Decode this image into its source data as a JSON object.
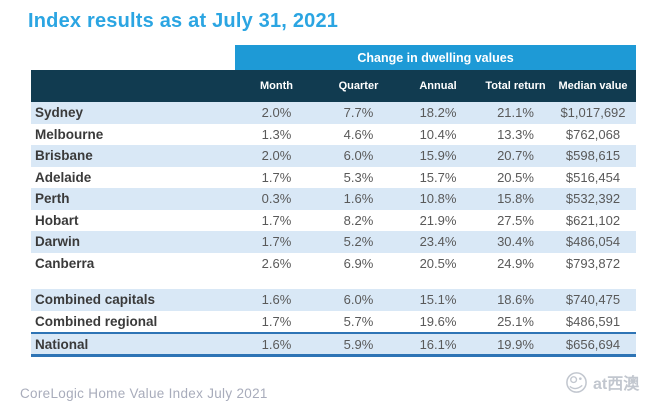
{
  "title": "Index results as at July 31, 2021",
  "chart_data": {
    "type": "table",
    "title": "Index results as at July 31, 2021",
    "banner": "Change in dwelling values",
    "columns": [
      "Month",
      "Quarter",
      "Annual",
      "Total return",
      "Median value"
    ],
    "rows": [
      {
        "label": "Sydney",
        "values": [
          "2.0%",
          "7.7%",
          "18.2%",
          "21.1%",
          "$1,017,692"
        ],
        "group": "city"
      },
      {
        "label": "Melbourne",
        "values": [
          "1.3%",
          "4.6%",
          "10.4%",
          "13.3%",
          "$762,068"
        ],
        "group": "city"
      },
      {
        "label": "Brisbane",
        "values": [
          "2.0%",
          "6.0%",
          "15.9%",
          "20.7%",
          "$598,615"
        ],
        "group": "city"
      },
      {
        "label": "Adelaide",
        "values": [
          "1.7%",
          "5.3%",
          "15.7%",
          "20.5%",
          "$516,454"
        ],
        "group": "city"
      },
      {
        "label": "Perth",
        "values": [
          "0.3%",
          "1.6%",
          "10.8%",
          "15.8%",
          "$532,392"
        ],
        "group": "city"
      },
      {
        "label": "Hobart",
        "values": [
          "1.7%",
          "8.2%",
          "21.9%",
          "27.5%",
          "$621,102"
        ],
        "group": "city"
      },
      {
        "label": "Darwin",
        "values": [
          "1.7%",
          "5.2%",
          "23.4%",
          "30.4%",
          "$486,054"
        ],
        "group": "city"
      },
      {
        "label": "Canberra",
        "values": [
          "2.6%",
          "6.9%",
          "20.5%",
          "24.9%",
          "$793,872"
        ],
        "group": "city"
      },
      {
        "label": "Combined capitals",
        "values": [
          "1.6%",
          "6.0%",
          "15.1%",
          "18.6%",
          "$740,475"
        ],
        "group": "combined",
        "spacer_before": true
      },
      {
        "label": "Combined regional",
        "values": [
          "1.7%",
          "5.7%",
          "19.6%",
          "25.1%",
          "$486,591"
        ],
        "group": "combined"
      },
      {
        "label": "National",
        "values": [
          "1.6%",
          "5.9%",
          "16.1%",
          "19.9%",
          "$656,694"
        ],
        "group": "national"
      }
    ]
  },
  "footer": {
    "source": "CoreLogic Home Value Index July 2021"
  },
  "watermark": {
    "label": "at西澳",
    "icon": "globe-logo-icon"
  },
  "colors": {
    "banner_blue": "#1E9AD6",
    "header_navy": "#113B50",
    "stripe_blue": "#D9E8F6",
    "title_blue": "#2BA5E2",
    "value_gray": "#595959",
    "national_border_blue": "#2E74B5",
    "footer_gray": "#A8ACBB"
  }
}
